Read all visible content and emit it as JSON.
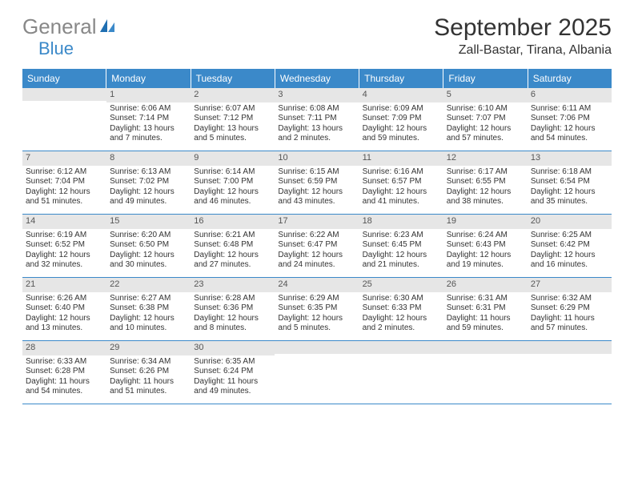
{
  "logo": {
    "text1": "General",
    "text2": "Blue"
  },
  "title": "September 2025",
  "location": "Zall-Bastar, Tirana, Albania",
  "colors": {
    "header_bg": "#3b89c9",
    "header_text": "#ffffff",
    "daynum_bg": "#e6e6e6",
    "border": "#3b89c9",
    "logo_gray": "#888888",
    "logo_blue": "#3b89c9"
  },
  "dayNames": [
    "Sunday",
    "Monday",
    "Tuesday",
    "Wednesday",
    "Thursday",
    "Friday",
    "Saturday"
  ],
  "weeks": [
    [
      {
        "n": "",
        "lines": []
      },
      {
        "n": "1",
        "lines": [
          "Sunrise: 6:06 AM",
          "Sunset: 7:14 PM",
          "Daylight: 13 hours",
          "and 7 minutes."
        ]
      },
      {
        "n": "2",
        "lines": [
          "Sunrise: 6:07 AM",
          "Sunset: 7:12 PM",
          "Daylight: 13 hours",
          "and 5 minutes."
        ]
      },
      {
        "n": "3",
        "lines": [
          "Sunrise: 6:08 AM",
          "Sunset: 7:11 PM",
          "Daylight: 13 hours",
          "and 2 minutes."
        ]
      },
      {
        "n": "4",
        "lines": [
          "Sunrise: 6:09 AM",
          "Sunset: 7:09 PM",
          "Daylight: 12 hours",
          "and 59 minutes."
        ]
      },
      {
        "n": "5",
        "lines": [
          "Sunrise: 6:10 AM",
          "Sunset: 7:07 PM",
          "Daylight: 12 hours",
          "and 57 minutes."
        ]
      },
      {
        "n": "6",
        "lines": [
          "Sunrise: 6:11 AM",
          "Sunset: 7:06 PM",
          "Daylight: 12 hours",
          "and 54 minutes."
        ]
      }
    ],
    [
      {
        "n": "7",
        "lines": [
          "Sunrise: 6:12 AM",
          "Sunset: 7:04 PM",
          "Daylight: 12 hours",
          "and 51 minutes."
        ]
      },
      {
        "n": "8",
        "lines": [
          "Sunrise: 6:13 AM",
          "Sunset: 7:02 PM",
          "Daylight: 12 hours",
          "and 49 minutes."
        ]
      },
      {
        "n": "9",
        "lines": [
          "Sunrise: 6:14 AM",
          "Sunset: 7:00 PM",
          "Daylight: 12 hours",
          "and 46 minutes."
        ]
      },
      {
        "n": "10",
        "lines": [
          "Sunrise: 6:15 AM",
          "Sunset: 6:59 PM",
          "Daylight: 12 hours",
          "and 43 minutes."
        ]
      },
      {
        "n": "11",
        "lines": [
          "Sunrise: 6:16 AM",
          "Sunset: 6:57 PM",
          "Daylight: 12 hours",
          "and 41 minutes."
        ]
      },
      {
        "n": "12",
        "lines": [
          "Sunrise: 6:17 AM",
          "Sunset: 6:55 PM",
          "Daylight: 12 hours",
          "and 38 minutes."
        ]
      },
      {
        "n": "13",
        "lines": [
          "Sunrise: 6:18 AM",
          "Sunset: 6:54 PM",
          "Daylight: 12 hours",
          "and 35 minutes."
        ]
      }
    ],
    [
      {
        "n": "14",
        "lines": [
          "Sunrise: 6:19 AM",
          "Sunset: 6:52 PM",
          "Daylight: 12 hours",
          "and 32 minutes."
        ]
      },
      {
        "n": "15",
        "lines": [
          "Sunrise: 6:20 AM",
          "Sunset: 6:50 PM",
          "Daylight: 12 hours",
          "and 30 minutes."
        ]
      },
      {
        "n": "16",
        "lines": [
          "Sunrise: 6:21 AM",
          "Sunset: 6:48 PM",
          "Daylight: 12 hours",
          "and 27 minutes."
        ]
      },
      {
        "n": "17",
        "lines": [
          "Sunrise: 6:22 AM",
          "Sunset: 6:47 PM",
          "Daylight: 12 hours",
          "and 24 minutes."
        ]
      },
      {
        "n": "18",
        "lines": [
          "Sunrise: 6:23 AM",
          "Sunset: 6:45 PM",
          "Daylight: 12 hours",
          "and 21 minutes."
        ]
      },
      {
        "n": "19",
        "lines": [
          "Sunrise: 6:24 AM",
          "Sunset: 6:43 PM",
          "Daylight: 12 hours",
          "and 19 minutes."
        ]
      },
      {
        "n": "20",
        "lines": [
          "Sunrise: 6:25 AM",
          "Sunset: 6:42 PM",
          "Daylight: 12 hours",
          "and 16 minutes."
        ]
      }
    ],
    [
      {
        "n": "21",
        "lines": [
          "Sunrise: 6:26 AM",
          "Sunset: 6:40 PM",
          "Daylight: 12 hours",
          "and 13 minutes."
        ]
      },
      {
        "n": "22",
        "lines": [
          "Sunrise: 6:27 AM",
          "Sunset: 6:38 PM",
          "Daylight: 12 hours",
          "and 10 minutes."
        ]
      },
      {
        "n": "23",
        "lines": [
          "Sunrise: 6:28 AM",
          "Sunset: 6:36 PM",
          "Daylight: 12 hours",
          "and 8 minutes."
        ]
      },
      {
        "n": "24",
        "lines": [
          "Sunrise: 6:29 AM",
          "Sunset: 6:35 PM",
          "Daylight: 12 hours",
          "and 5 minutes."
        ]
      },
      {
        "n": "25",
        "lines": [
          "Sunrise: 6:30 AM",
          "Sunset: 6:33 PM",
          "Daylight: 12 hours",
          "and 2 minutes."
        ]
      },
      {
        "n": "26",
        "lines": [
          "Sunrise: 6:31 AM",
          "Sunset: 6:31 PM",
          "Daylight: 11 hours",
          "and 59 minutes."
        ]
      },
      {
        "n": "27",
        "lines": [
          "Sunrise: 6:32 AM",
          "Sunset: 6:29 PM",
          "Daylight: 11 hours",
          "and 57 minutes."
        ]
      }
    ],
    [
      {
        "n": "28",
        "lines": [
          "Sunrise: 6:33 AM",
          "Sunset: 6:28 PM",
          "Daylight: 11 hours",
          "and 54 minutes."
        ]
      },
      {
        "n": "29",
        "lines": [
          "Sunrise: 6:34 AM",
          "Sunset: 6:26 PM",
          "Daylight: 11 hours",
          "and 51 minutes."
        ]
      },
      {
        "n": "30",
        "lines": [
          "Sunrise: 6:35 AM",
          "Sunset: 6:24 PM",
          "Daylight: 11 hours",
          "and 49 minutes."
        ]
      },
      {
        "n": "",
        "lines": []
      },
      {
        "n": "",
        "lines": []
      },
      {
        "n": "",
        "lines": []
      },
      {
        "n": "",
        "lines": []
      }
    ]
  ]
}
